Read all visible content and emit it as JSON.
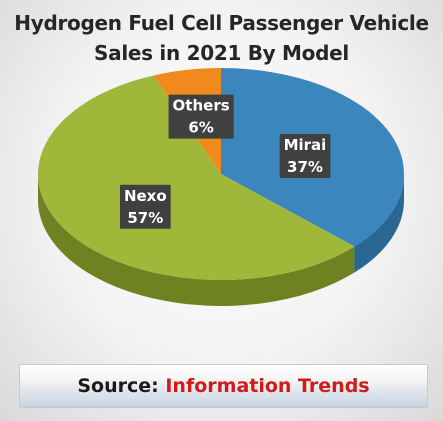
{
  "title_lines": [
    "Hydrogen Fuel Cell Passenger Vehicle",
    "Sales in 2021 By Model"
  ],
  "chart_data": {
    "type": "pie",
    "title": "Hydrogen Fuel Cell Passenger Vehicle Sales in 2021 By Model",
    "unit": "%",
    "start_angle_deg": 0,
    "direction": "clockwise",
    "slices": [
      {
        "label": "Mirai",
        "value": 37,
        "display": "37%",
        "color": "#3b87bd",
        "side_color": "#2a6792"
      },
      {
        "label": "Nexo",
        "value": 57,
        "display": "57%",
        "color": "#9fb83a",
        "side_color": "#6e8221"
      },
      {
        "label": "Others",
        "value": 6,
        "display": "6%",
        "color": "#f08a1c",
        "side_color": "#b9650f"
      }
    ]
  },
  "source": {
    "label": "Source:",
    "value": "Information Trends"
  }
}
